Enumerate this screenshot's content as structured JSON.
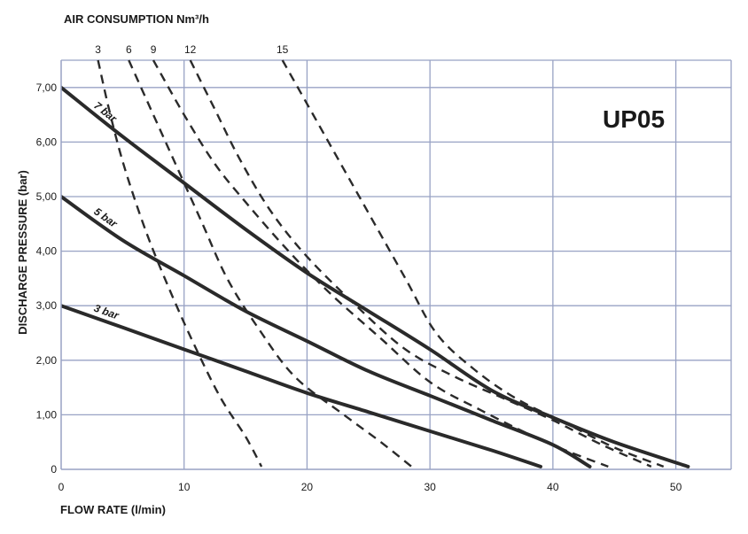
{
  "chart_data": {
    "type": "line",
    "title": "UP05",
    "top_axis_label": "AIR CONSUMPTION Nm³/h",
    "xlabel": "FLOW RATE (l/min)",
    "ylabel": "DISCHARGE PRESSURE (bar)",
    "xlim": [
      0,
      54.5
    ],
    "ylim": [
      0,
      7.5
    ],
    "x_ticks": [
      0,
      10,
      20,
      30,
      40,
      50
    ],
    "x_tick_labels": [
      "0",
      "10",
      "20",
      "30",
      "40",
      "50"
    ],
    "y_ticks": [
      0,
      1,
      2,
      3,
      4,
      5,
      6,
      7
    ],
    "y_tick_labels": [
      "0",
      "1,00",
      "2,00",
      "3,00",
      "4,00",
      "5,00",
      "6,00",
      "7,00"
    ],
    "grid": true,
    "series": [
      {
        "name": "7 bar",
        "style": "solid",
        "points": [
          [
            0,
            7.0
          ],
          [
            5,
            6.1
          ],
          [
            10,
            5.25
          ],
          [
            15,
            4.4
          ],
          [
            20,
            3.6
          ],
          [
            25,
            2.9
          ],
          [
            30,
            2.2
          ],
          [
            35,
            1.45
          ],
          [
            40,
            0.95
          ],
          [
            45,
            0.5
          ],
          [
            51,
            0.05
          ]
        ]
      },
      {
        "name": "5 bar",
        "style": "solid",
        "points": [
          [
            0,
            5.0
          ],
          [
            5,
            4.2
          ],
          [
            10,
            3.55
          ],
          [
            15,
            2.9
          ],
          [
            20,
            2.35
          ],
          [
            25,
            1.8
          ],
          [
            30,
            1.35
          ],
          [
            35,
            0.9
          ],
          [
            40,
            0.45
          ],
          [
            43,
            0.05
          ]
        ]
      },
      {
        "name": "3 bar",
        "style": "solid",
        "points": [
          [
            0,
            3.0
          ],
          [
            5,
            2.6
          ],
          [
            10,
            2.2
          ],
          [
            15,
            1.8
          ],
          [
            20,
            1.4
          ],
          [
            25,
            1.05
          ],
          [
            30,
            0.7
          ],
          [
            35,
            0.35
          ],
          [
            39,
            0.05
          ]
        ]
      },
      {
        "name": "3",
        "style": "dashed",
        "points": [
          [
            3.0,
            7.5
          ],
          [
            4.0,
            6.5
          ],
          [
            5.2,
            5.5
          ],
          [
            7.0,
            4.3
          ],
          [
            9.0,
            3.2
          ],
          [
            11.0,
            2.2
          ],
          [
            13.0,
            1.3
          ],
          [
            15.0,
            0.6
          ],
          [
            16.3,
            0.05
          ]
        ]
      },
      {
        "name": "6",
        "style": "dashed",
        "points": [
          [
            5.5,
            7.5
          ],
          [
            7.5,
            6.5
          ],
          [
            9.5,
            5.5
          ],
          [
            11.5,
            4.5
          ],
          [
            13.5,
            3.5
          ],
          [
            16.0,
            2.6
          ],
          [
            19.0,
            1.7
          ],
          [
            23.0,
            1.0
          ],
          [
            26.0,
            0.5
          ],
          [
            28.5,
            0.05
          ]
        ]
      },
      {
        "name": "9",
        "style": "dashed",
        "points": [
          [
            7.5,
            7.5
          ],
          [
            10.0,
            6.5
          ],
          [
            12.5,
            5.6
          ],
          [
            15.0,
            4.9
          ],
          [
            18.5,
            4.0
          ],
          [
            22.0,
            3.2
          ],
          [
            26.0,
            2.4
          ],
          [
            30.0,
            1.6
          ],
          [
            34.0,
            1.1
          ],
          [
            38.0,
            0.65
          ],
          [
            41.0,
            0.35
          ],
          [
            44.5,
            0.05
          ]
        ]
      },
      {
        "name": "12",
        "style": "dashed",
        "points": [
          [
            10.5,
            7.5
          ],
          [
            12.5,
            6.6
          ],
          [
            14.5,
            5.7
          ],
          [
            17.0,
            4.75
          ],
          [
            20.0,
            3.9
          ],
          [
            24.0,
            3.0
          ],
          [
            28.0,
            2.2
          ],
          [
            32.0,
            1.7
          ],
          [
            36.0,
            1.3
          ],
          [
            40.0,
            0.9
          ],
          [
            44.0,
            0.45
          ],
          [
            48.0,
            0.05
          ]
        ]
      },
      {
        "name": "15",
        "style": "dashed",
        "points": [
          [
            18.0,
            7.5
          ],
          [
            20.5,
            6.5
          ],
          [
            23.0,
            5.5
          ],
          [
            25.5,
            4.5
          ],
          [
            28.0,
            3.5
          ],
          [
            30.5,
            2.5
          ],
          [
            33.5,
            1.85
          ],
          [
            37.0,
            1.3
          ],
          [
            41.0,
            0.85
          ],
          [
            45.0,
            0.4
          ],
          [
            49.0,
            0.05
          ]
        ]
      }
    ]
  }
}
